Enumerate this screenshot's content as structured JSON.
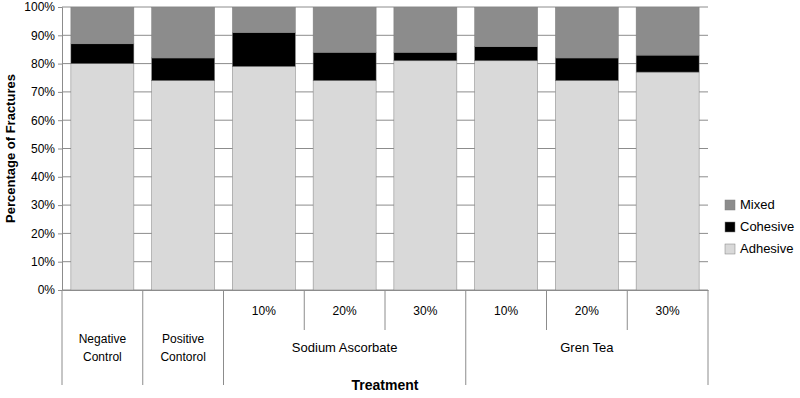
{
  "chart_data": {
    "type": "bar",
    "stacked": true,
    "grid": true,
    "legend": "right",
    "y_label": "Percentage of Fractures",
    "x_label": "Treatment",
    "categories": [
      "Negative Control",
      "Positive Contorol",
      "10%",
      "20%",
      "30%",
      "10%",
      "20%",
      "30%"
    ],
    "category_groups": [
      null,
      null,
      "Sodium Ascorbate",
      "Sodium Ascorbate",
      "Sodium Ascorbate",
      "Gren Tea",
      "Gren Tea",
      "Gren Tea"
    ],
    "series": [
      {
        "name": "Adhesive",
        "color": "#d9d9d9",
        "values": [
          80,
          74,
          79,
          74,
          81,
          81,
          74,
          77
        ]
      },
      {
        "name": "Cohesive",
        "color": "#000000",
        "values": [
          7,
          8,
          12,
          10,
          3,
          5,
          8,
          6
        ]
      },
      {
        "name": "Mixed",
        "color": "#8c8c8c",
        "values": [
          13,
          18,
          9,
          16,
          16,
          14,
          18,
          17
        ]
      }
    ],
    "ylim": [
      0,
      100
    ],
    "yticks": [
      {
        "value": 0,
        "label": "0%"
      },
      {
        "value": 10,
        "label": "10%"
      },
      {
        "value": 20,
        "label": "20%"
      },
      {
        "value": 30,
        "label": "30%"
      },
      {
        "value": 40,
        "label": "40%"
      },
      {
        "value": 50,
        "label": "50%"
      },
      {
        "value": 60,
        "label": "60%"
      },
      {
        "value": 70,
        "label": "70%"
      },
      {
        "value": 80,
        "label": "80%"
      },
      {
        "value": 90,
        "label": "90%"
      },
      {
        "value": 100,
        "label": "100%"
      }
    ]
  }
}
